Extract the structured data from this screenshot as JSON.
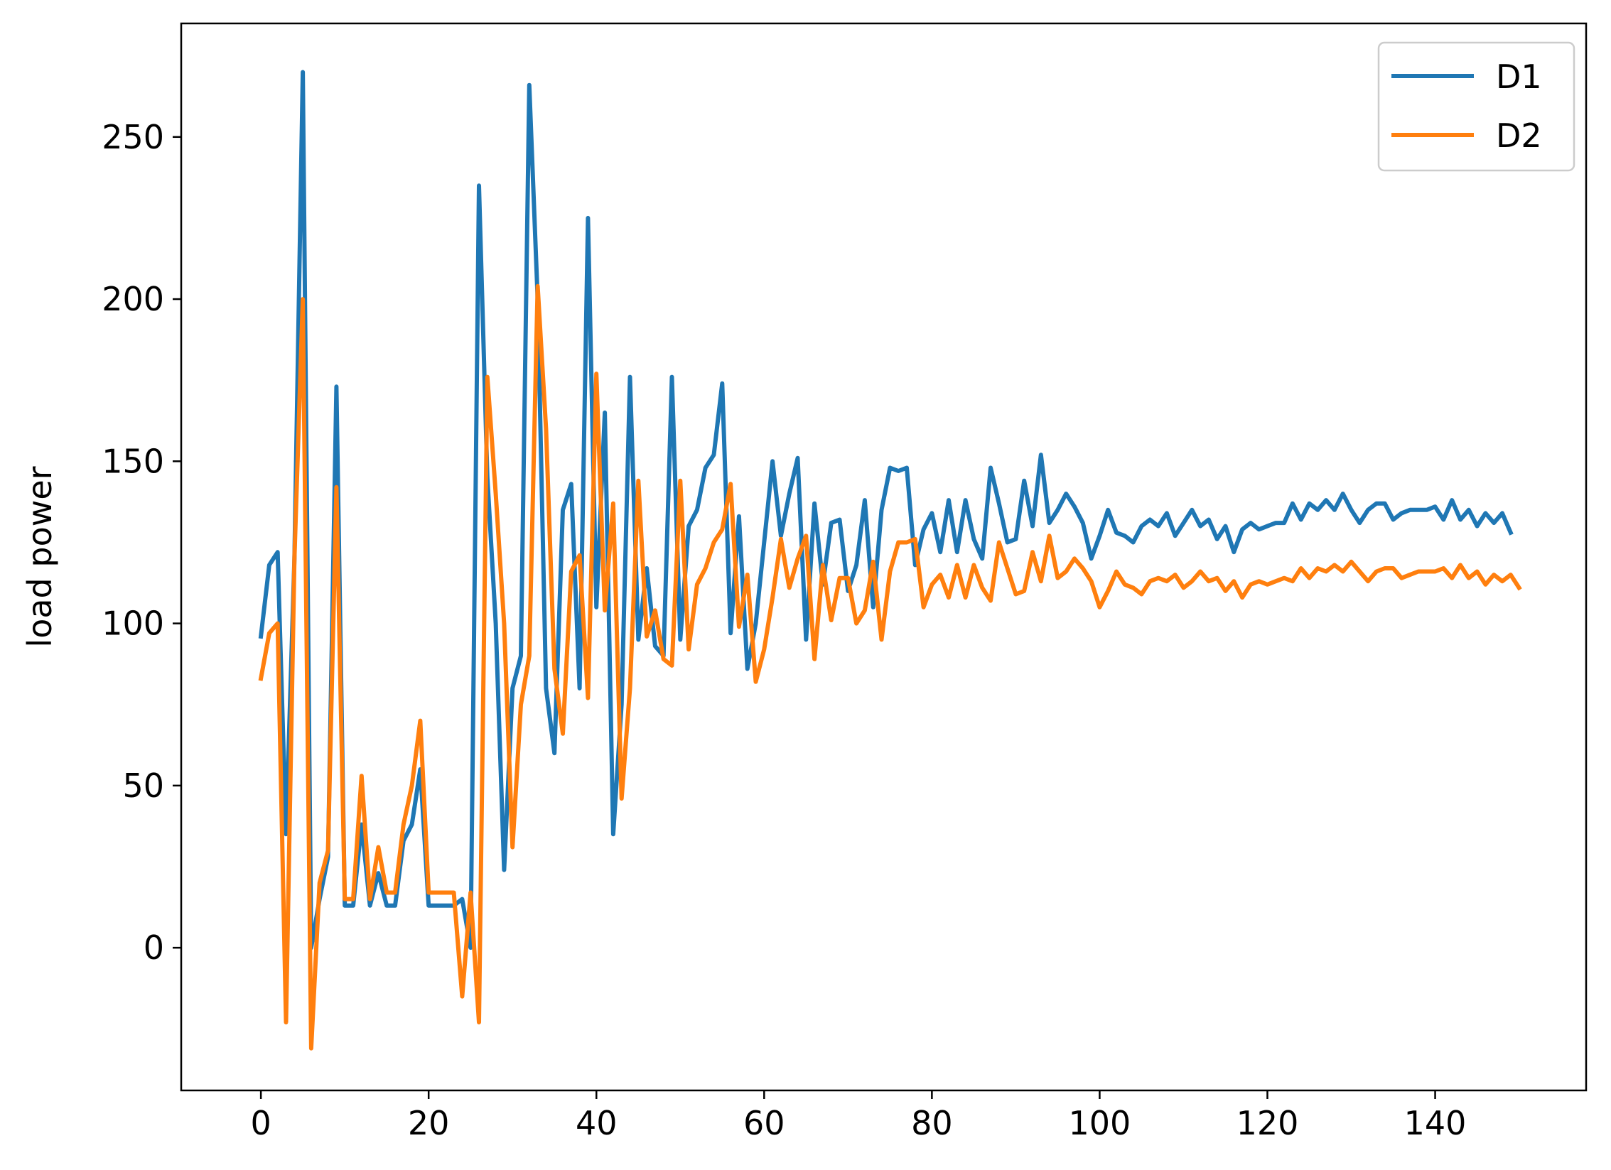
{
  "chart_data": {
    "type": "line",
    "title": "",
    "xlabel": "",
    "ylabel": "load power",
    "xlim": [
      -9.5,
      158
    ],
    "ylim": [
      -44,
      285
    ],
    "x_ticks": [
      0,
      20,
      40,
      60,
      80,
      100,
      120,
      140
    ],
    "y_ticks": [
      0,
      50,
      100,
      150,
      200,
      250
    ],
    "grid": false,
    "legend_position": "top-right",
    "series": [
      {
        "name": "D1",
        "color": "#1f77b4",
        "values": [
          96,
          118,
          122,
          35,
          120,
          270,
          0,
          15,
          28,
          173,
          13,
          13,
          38,
          13,
          23,
          13,
          13,
          33,
          38,
          55,
          13,
          13,
          13,
          13,
          15,
          0,
          235,
          145,
          100,
          24,
          80,
          90,
          266,
          200,
          80,
          60,
          135,
          143,
          80,
          225,
          105,
          165,
          35,
          75,
          176,
          95,
          117,
          93,
          90,
          176,
          95,
          130,
          135,
          148,
          152,
          174,
          97,
          133,
          86,
          100,
          125,
          150,
          127,
          140,
          151,
          95,
          137,
          112,
          131,
          132,
          110,
          118,
          138,
          105,
          135,
          148,
          147,
          148,
          118,
          129,
          134,
          122,
          138,
          122,
          138,
          126,
          120,
          148,
          137,
          125,
          126,
          144,
          130,
          152,
          131,
          135,
          140,
          136,
          131,
          120,
          127,
          135,
          128,
          127,
          125,
          130,
          132,
          130,
          134,
          127,
          131,
          135,
          130,
          132,
          126,
          130,
          122,
          129,
          131,
          129,
          130,
          131,
          131,
          137,
          132,
          137,
          135,
          138,
          135,
          140,
          135,
          131,
          135,
          137,
          137,
          132,
          134,
          135,
          135,
          135,
          136,
          132,
          138,
          132,
          135,
          130,
          134,
          131,
          134,
          128
        ]
      },
      {
        "name": "D2",
        "color": "#ff7f0e",
        "values": [
          83,
          97,
          100,
          -23,
          120,
          200,
          -31,
          20,
          30,
          142,
          15,
          15,
          53,
          15,
          31,
          17,
          17,
          38,
          50,
          70,
          17,
          17,
          17,
          17,
          -15,
          17,
          -23,
          176,
          140,
          100,
          31,
          75,
          90,
          204,
          160,
          86,
          66,
          116,
          121,
          77,
          177,
          104,
          137,
          46,
          80,
          144,
          96,
          104,
          89,
          87,
          144,
          92,
          112,
          117,
          125,
          129,
          143,
          99,
          115,
          82,
          92,
          108,
          126,
          111,
          120,
          127,
          89,
          118,
          101,
          114,
          114,
          100,
          104,
          119,
          95,
          116,
          125,
          125,
          126,
          105,
          112,
          115,
          108,
          118,
          108,
          118,
          111,
          107,
          125,
          117,
          109,
          110,
          122,
          113,
          127,
          114,
          116,
          120,
          117,
          113,
          105,
          110,
          116,
          112,
          111,
          109,
          113,
          114,
          113,
          115,
          111,
          113,
          116,
          113,
          114,
          110,
          113,
          108,
          112,
          113,
          112,
          113,
          114,
          113,
          117,
          114,
          117,
          116,
          118,
          116,
          119,
          116,
          113,
          116,
          117,
          117,
          114,
          115,
          116,
          116,
          116,
          117,
          114,
          118,
          114,
          116,
          112,
          115,
          113,
          115,
          111
        ]
      }
    ]
  }
}
